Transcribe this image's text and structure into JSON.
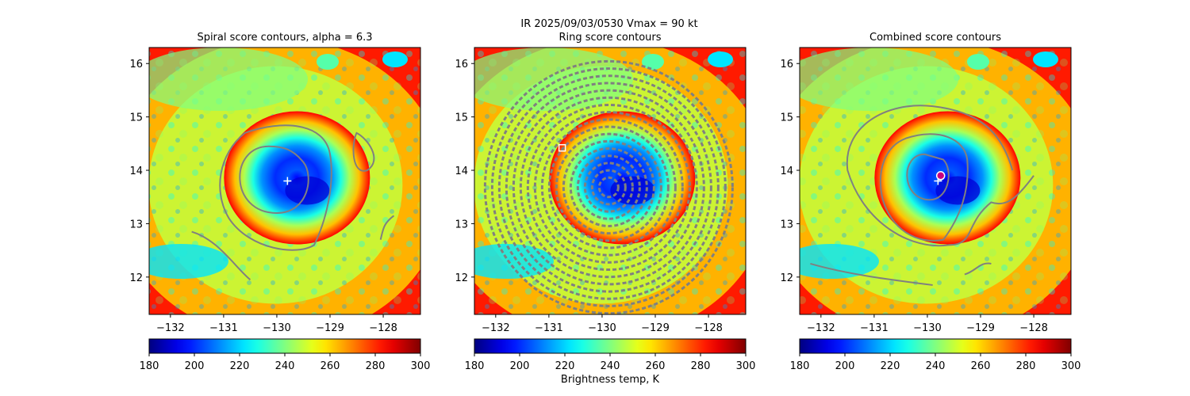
{
  "figure": {
    "suptitle": "IR  2025/09/03/0530    Vmax = 90 kt",
    "colorbar_label": "Brightness temp, K"
  },
  "chart_data": [
    {
      "type": "heatmap",
      "title": "Spiral score contours, alpha =  6.3",
      "xlim": [
        -132.4,
        -127.3
      ],
      "ylim": [
        11.3,
        16.3
      ],
      "xticks": [
        -132,
        -131,
        -130,
        -129,
        -128
      ],
      "yticks": [
        12,
        13,
        14,
        15,
        16
      ],
      "colorbar": {
        "range": [
          180,
          300
        ],
        "ticks": [
          180,
          200,
          220,
          240,
          260,
          280,
          300
        ],
        "colormap": "jet_r"
      },
      "storm_center": {
        "lon": -129.8,
        "lat": 13.8
      },
      "marker": {
        "type": "plus",
        "lon": -129.8,
        "lat": 13.8,
        "color": "#ffffff"
      },
      "contours": "spiral",
      "xlabel": "",
      "ylabel": ""
    },
    {
      "type": "heatmap",
      "title": "Ring score contours",
      "xlim": [
        -132.4,
        -127.3
      ],
      "ylim": [
        11.3,
        16.3
      ],
      "xticks": [
        -132,
        -131,
        -130,
        -129,
        -128
      ],
      "yticks": [
        12,
        13,
        14,
        15,
        16
      ],
      "colorbar": {
        "range": [
          180,
          300
        ],
        "ticks": [
          180,
          200,
          220,
          240,
          260,
          280,
          300
        ],
        "colormap": "jet_r"
      },
      "storm_center": {
        "lon": -129.8,
        "lat": 13.8
      },
      "marker": {
        "type": "square",
        "lon": -130.75,
        "lat": 14.42,
        "color": "#ffffff"
      },
      "contours": "ring",
      "xlabel": "Brightness temp, K",
      "ylabel": ""
    },
    {
      "type": "heatmap",
      "title": "Combined score contours",
      "xlim": [
        -132.4,
        -127.3
      ],
      "ylim": [
        11.3,
        16.3
      ],
      "xticks": [
        -132,
        -131,
        -130,
        -129,
        -128
      ],
      "yticks": [
        12,
        13,
        14,
        15,
        16
      ],
      "colorbar": {
        "range": [
          180,
          300
        ],
        "ticks": [
          180,
          200,
          220,
          240,
          260,
          280,
          300
        ],
        "colormap": "jet_r"
      },
      "storm_center": {
        "lon": -129.8,
        "lat": 13.8
      },
      "marker": {
        "type": "plus",
        "lon": -129.8,
        "lat": 13.8,
        "color": "#ffffff"
      },
      "marker2": {
        "type": "circle",
        "lon": -129.75,
        "lat": 13.9,
        "color": "#c80080"
      },
      "contours": "combined",
      "xlabel": "",
      "ylabel": ""
    }
  ]
}
